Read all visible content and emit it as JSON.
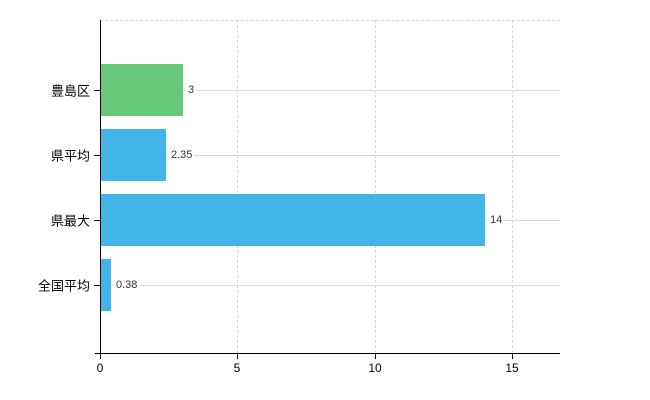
{
  "chart_data": {
    "type": "bar",
    "orientation": "horizontal",
    "title": "",
    "categories": [
      "豊島区",
      "県平均",
      "県最大",
      "全国平均"
    ],
    "values": [
      3,
      2.35,
      14,
      0.38
    ],
    "value_labels": [
      "3",
      "2.35",
      "14",
      "0.38"
    ],
    "bar_colors": [
      "#66c878",
      "#42b4e9",
      "#42b4e9",
      "#42b4e9"
    ],
    "x_tick_values": [
      0,
      5,
      10,
      15
    ],
    "x_tick_labels": [
      "0",
      "5",
      "10",
      "15"
    ],
    "xlim": [
      0,
      16.75
    ],
    "xlabel": "",
    "ylabel": "",
    "legend": "none",
    "grid": {
      "vertical": "dashed",
      "horizontal_row_lines": "solid"
    }
  },
  "colors": {
    "background": "#ffffff",
    "axis": "#000000",
    "gridline": "#d6d6d6",
    "row_line": "#dadada",
    "bar_green": "#66c878",
    "bar_blue": "#42b4e9",
    "category_text": "#000000",
    "value_text": "#333333",
    "tick_text": "#000000"
  }
}
